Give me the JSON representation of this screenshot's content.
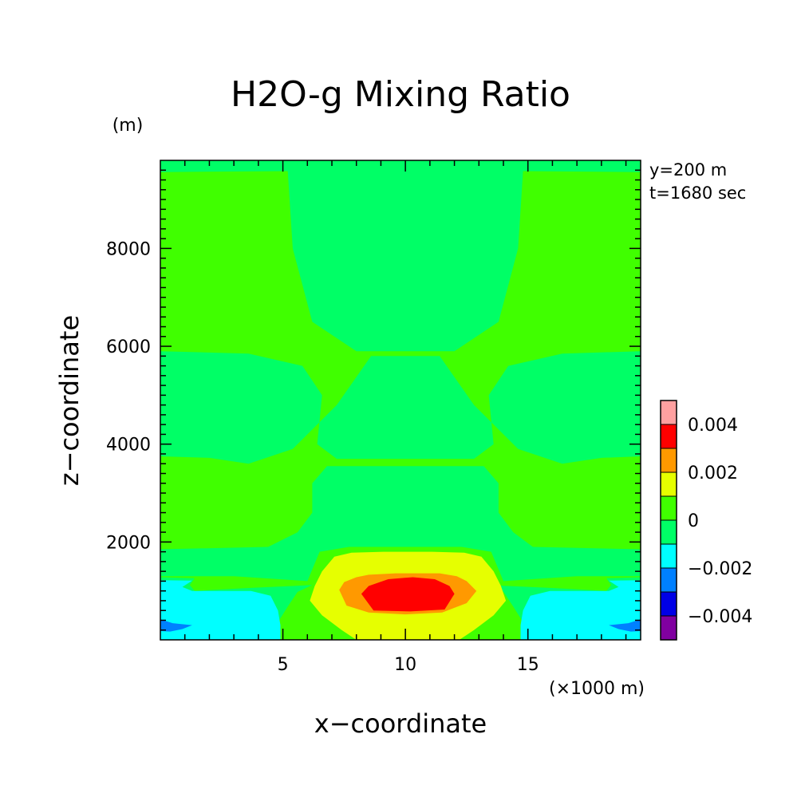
{
  "chart_data": {
    "type": "heatmap",
    "title": "H2O-g Mixing Ratio",
    "xlabel": "x−coordinate",
    "ylabel": "z−coordinate",
    "x_units": "(×1000 m)",
    "y_units": "(m)",
    "xlim": [
      0,
      19.6
    ],
    "ylim": [
      0,
      9800
    ],
    "x_ticks": [
      5,
      10,
      15
    ],
    "y_ticks": [
      2000,
      4000,
      6000,
      8000
    ],
    "annotations": [
      "y=200 m",
      "t=1680 sec"
    ],
    "colorbar": {
      "levels": [
        -0.005,
        -0.004,
        -0.003,
        -0.002,
        -0.001,
        0,
        0.001,
        0.002,
        0.003,
        0.004,
        0.005
      ],
      "colors": [
        "#8000a0",
        "#0000e6",
        "#0080ff",
        "#00ffff",
        "#00ff66",
        "#40ff00",
        "#e6ff00",
        "#ff9900",
        "#ff0000",
        "#ffa0a0"
      ],
      "tick_values": [
        -0.004,
        -0.002,
        0,
        0.002,
        0.004
      ],
      "tick_labels": [
        "−0.004",
        "−0.002",
        "0",
        "0.002",
        "0.004"
      ]
    },
    "regions": [
      {
        "value_range": [
          0,
          0.001
        ],
        "desc": "background",
        "polygon": [
          [
            0,
            0
          ],
          [
            19.6,
            0
          ],
          [
            19.6,
            9800
          ],
          [
            0,
            9800
          ]
        ]
      },
      {
        "value_range": [
          -0.001,
          0
        ],
        "desc": "upper central band",
        "polygon": [
          [
            0,
            9560
          ],
          [
            5.2,
            9580
          ],
          [
            5.4,
            8000
          ],
          [
            6.2,
            6500
          ],
          [
            8,
            5900
          ],
          [
            12,
            5900
          ],
          [
            13.8,
            6500
          ],
          [
            14.6,
            8000
          ],
          [
            14.8,
            9580
          ],
          [
            19.6,
            9560
          ],
          [
            19.6,
            9800
          ],
          [
            0,
            9800
          ]
        ]
      },
      {
        "value_range": [
          -0.001,
          0
        ],
        "desc": "middle band",
        "polygon": [
          [
            0,
            3750
          ],
          [
            2,
            3720
          ],
          [
            3.6,
            3600
          ],
          [
            5.4,
            3900
          ],
          [
            7.2,
            4800
          ],
          [
            8.6,
            5800
          ],
          [
            11.4,
            5800
          ],
          [
            12.8,
            4800
          ],
          [
            14.6,
            3900
          ],
          [
            16.4,
            3600
          ],
          [
            18,
            3720
          ],
          [
            19.6,
            3750
          ],
          [
            19.6,
            5900
          ],
          [
            16.4,
            5850
          ],
          [
            14.2,
            5600
          ],
          [
            13.4,
            5000
          ],
          [
            13.6,
            4000
          ],
          [
            12.8,
            3700
          ],
          [
            7.2,
            3700
          ],
          [
            6.4,
            4000
          ],
          [
            6.6,
            5000
          ],
          [
            5.8,
            5600
          ],
          [
            3.6,
            5850
          ],
          [
            0,
            5900
          ]
        ]
      },
      {
        "value_range": [
          -0.001,
          0
        ],
        "desc": "lower band",
        "polygon": [
          [
            0,
            1850
          ],
          [
            4.4,
            1900
          ],
          [
            5.6,
            2200
          ],
          [
            6.2,
            2600
          ],
          [
            6.2,
            3200
          ],
          [
            6.8,
            3550
          ],
          [
            13.2,
            3550
          ],
          [
            13.8,
            3200
          ],
          [
            13.8,
            2600
          ],
          [
            14.4,
            2200
          ],
          [
            15.2,
            1900
          ],
          [
            19.6,
            1850
          ],
          [
            19.6,
            1300
          ],
          [
            17,
            1300
          ],
          [
            14,
            1200
          ],
          [
            13.5,
            1800
          ],
          [
            12.3,
            1900
          ],
          [
            7.7,
            1900
          ],
          [
            6.5,
            1800
          ],
          [
            6,
            1200
          ],
          [
            3,
            1300
          ],
          [
            0,
            1300
          ]
        ]
      },
      {
        "value_range": [
          -0.001,
          0
        ],
        "desc": "bottom left lobe",
        "polygon": [
          [
            0,
            1280
          ],
          [
            1.4,
            1260
          ],
          [
            1.2,
            1120
          ],
          [
            1.4,
            1000
          ],
          [
            3.6,
            1060
          ],
          [
            5.4,
            1100
          ],
          [
            6.2,
            1120
          ],
          [
            5.6,
            980
          ],
          [
            5.2,
            680
          ],
          [
            4.8,
            360
          ],
          [
            4.6,
            0
          ],
          [
            0,
            0
          ]
        ]
      },
      {
        "value_range": [
          -0.001,
          0
        ],
        "desc": "bottom right lobe",
        "polygon": [
          [
            19.6,
            1280
          ],
          [
            18.2,
            1260
          ],
          [
            18.4,
            1120
          ],
          [
            18.2,
            1000
          ],
          [
            16,
            1060
          ],
          [
            14.2,
            1100
          ],
          [
            13.4,
            1120
          ],
          [
            14,
            980
          ],
          [
            14.4,
            680
          ],
          [
            14.8,
            360
          ],
          [
            15,
            0
          ],
          [
            19.6,
            0
          ]
        ]
      },
      {
        "value_range": [
          0.001,
          0.002
        ],
        "desc": "central plume rim",
        "polygon": [
          [
            7.1,
            1700
          ],
          [
            7.8,
            1780
          ],
          [
            9.1,
            1800
          ],
          [
            11.1,
            1800
          ],
          [
            12.4,
            1780
          ],
          [
            13.1,
            1700
          ],
          [
            13.6,
            1400
          ],
          [
            13.9,
            1100
          ],
          [
            14.1,
            800
          ],
          [
            13.6,
            500
          ],
          [
            12.8,
            200
          ],
          [
            12.2,
            0
          ],
          [
            8,
            0
          ],
          [
            7.4,
            200
          ],
          [
            6.6,
            500
          ],
          [
            6.1,
            800
          ],
          [
            6.3,
            1100
          ],
          [
            6.6,
            1400
          ]
        ]
      },
      {
        "value_range": [
          0.002,
          0.003
        ],
        "desc": "central plume",
        "polygon": [
          [
            7.3,
            1020
          ],
          [
            7.5,
            1180
          ],
          [
            8,
            1280
          ],
          [
            8.5,
            1330
          ],
          [
            9.6,
            1360
          ],
          [
            11.4,
            1360
          ],
          [
            12.1,
            1300
          ],
          [
            12.5,
            1200
          ],
          [
            12.9,
            1000
          ],
          [
            12.5,
            750
          ],
          [
            11.5,
            560
          ],
          [
            10,
            520
          ],
          [
            8.5,
            560
          ],
          [
            7.6,
            700
          ]
        ]
      },
      {
        "value_range": [
          0.003,
          0.004
        ],
        "desc": "plume core",
        "polygon": [
          [
            8.2,
            940
          ],
          [
            8.5,
            1100
          ],
          [
            9.3,
            1240
          ],
          [
            10.3,
            1280
          ],
          [
            11.2,
            1240
          ],
          [
            11.8,
            1100
          ],
          [
            12,
            940
          ],
          [
            11.6,
            620
          ],
          [
            10.2,
            580
          ],
          [
            8.7,
            600
          ]
        ]
      },
      {
        "value_range": [
          -0.002,
          -0.001
        ],
        "desc": "bottom left negative",
        "polygon": [
          [
            0,
            1220
          ],
          [
            1.3,
            1210
          ],
          [
            0.9,
            1080
          ],
          [
            1.3,
            1000
          ],
          [
            3.7,
            1000
          ],
          [
            4.5,
            900
          ],
          [
            4.8,
            600
          ],
          [
            4.9,
            300
          ],
          [
            4.9,
            0
          ],
          [
            0,
            0
          ]
        ]
      },
      {
        "value_range": [
          -0.002,
          -0.001
        ],
        "desc": "bottom right negative",
        "polygon": [
          [
            19.6,
            1220
          ],
          [
            18.3,
            1210
          ],
          [
            18.7,
            1080
          ],
          [
            18.3,
            1000
          ],
          [
            15.9,
            1000
          ],
          [
            15.1,
            900
          ],
          [
            14.8,
            600
          ],
          [
            14.7,
            300
          ],
          [
            14.7,
            0
          ],
          [
            19.6,
            0
          ]
        ]
      },
      {
        "value_range": [
          -0.003,
          -0.002
        ],
        "desc": "left negative streak",
        "polygon": [
          [
            0,
            420
          ],
          [
            0.5,
            340
          ],
          [
            1.3,
            300
          ],
          [
            0.9,
            220
          ],
          [
            0.4,
            170
          ],
          [
            0,
            180
          ]
        ]
      },
      {
        "value_range": [
          -0.003,
          -0.002
        ],
        "desc": "right negative streak",
        "polygon": [
          [
            19.6,
            420
          ],
          [
            19.1,
            340
          ],
          [
            18.3,
            300
          ],
          [
            18.7,
            220
          ],
          [
            19.2,
            170
          ],
          [
            19.6,
            180
          ]
        ]
      }
    ]
  }
}
